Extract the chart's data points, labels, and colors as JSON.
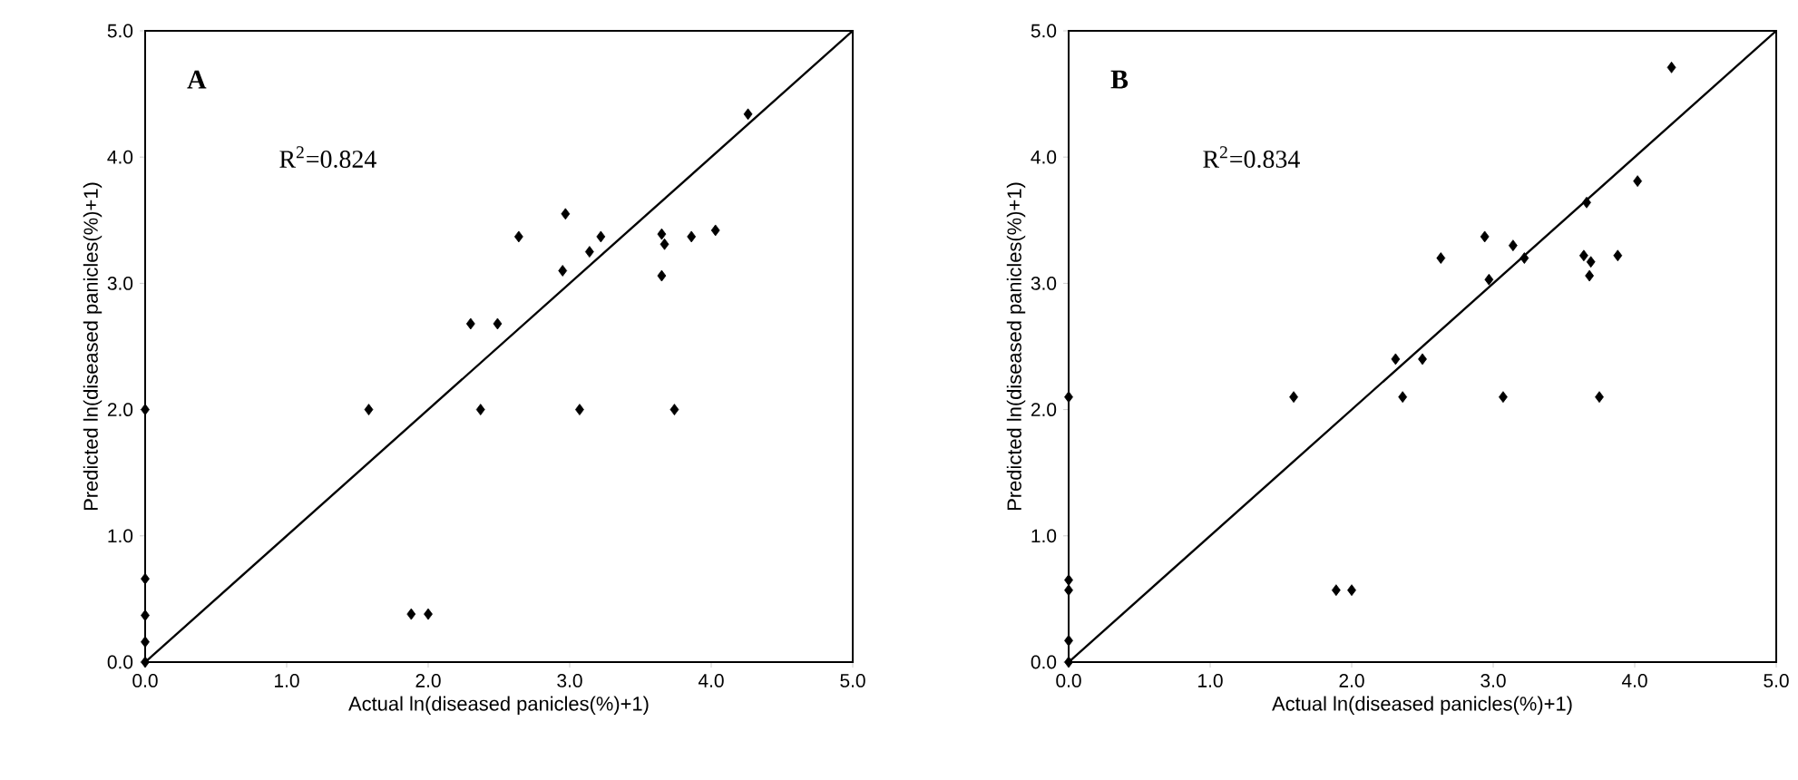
{
  "chart_data": [
    {
      "type": "scatter",
      "title": "A",
      "xlabel": "Actual ln(diseased panicles(%)+1)",
      "ylabel": "Predicted ln(diseased panicles(%)+1)",
      "annotations": [
        "R$^{2}$=0.824"
      ],
      "grid": false,
      "xlim": [
        0,
        5
      ],
      "ylim": [
        0,
        5
      ],
      "xticks": [
        {
          "value": 0,
          "label": "0.0"
        },
        {
          "value": 1,
          "label": "1.0"
        },
        {
          "value": 2,
          "label": "2.0"
        },
        {
          "value": 3,
          "label": "3.0"
        },
        {
          "value": 4,
          "label": "4.0"
        },
        {
          "value": 5,
          "label": "5.0"
        }
      ],
      "yticks": [
        {
          "value": 0,
          "label": "0.0"
        },
        {
          "value": 1,
          "label": "1.0"
        },
        {
          "value": 2,
          "label": "2.0"
        },
        {
          "value": 3,
          "label": "3.0"
        },
        {
          "value": 4,
          "label": "4.0"
        },
        {
          "value": 5,
          "label": "5.0"
        }
      ],
      "series": [
        {
          "marker": "diamond",
          "color": "#000000",
          "x": [
            0,
            0,
            0,
            0,
            0,
            1.58,
            1.88,
            2.0,
            2.3,
            2.49,
            2.37,
            2.64,
            2.97,
            2.95,
            3.14,
            3.22,
            3.07,
            3.65,
            3.67,
            3.65,
            3.74,
            3.86,
            4.03,
            4.26
          ],
          "values": [
            2.0,
            0.66,
            0.37,
            0.16,
            0,
            2.0,
            0.38,
            0.38,
            2.68,
            2.68,
            2.0,
            3.37,
            3.55,
            3.1,
            3.25,
            3.37,
            2.0,
            3.39,
            3.31,
            3.06,
            2.0,
            3.37,
            3.42,
            4.34
          ]
        },
        {
          "type": "line",
          "color": "#000000",
          "x": [
            0,
            5
          ],
          "values": [
            0,
            5
          ]
        }
      ]
    },
    {
      "type": "scatter",
      "title": "B",
      "xlabel": "Actual ln(diseased panicles(%)+1)",
      "ylabel": "Predicted ln(diseased panicles(%)+1)",
      "annotations": [
        "R$^{2}$=0.834"
      ],
      "grid": false,
      "xlim": [
        0,
        5
      ],
      "ylim": [
        0,
        5
      ],
      "xticks": [
        {
          "value": 0,
          "label": "0.0"
        },
        {
          "value": 1,
          "label": "1.0"
        },
        {
          "value": 2,
          "label": "2.0"
        },
        {
          "value": 3,
          "label": "3.0"
        },
        {
          "value": 4,
          "label": "4.0"
        },
        {
          "value": 5,
          "label": "5.0"
        }
      ],
      "yticks": [
        {
          "value": 0,
          "label": "0.0"
        },
        {
          "value": 1,
          "label": "1.0"
        },
        {
          "value": 2,
          "label": "2.0"
        },
        {
          "value": 3,
          "label": "3.0"
        },
        {
          "value": 4,
          "label": "4.0"
        },
        {
          "value": 5,
          "label": "5.0"
        }
      ],
      "series": [
        {
          "marker": "diamond",
          "color": "#000000",
          "x": [
            0,
            0,
            0,
            0,
            0,
            1.59,
            1.89,
            2.0,
            2.31,
            2.5,
            2.36,
            2.63,
            2.94,
            2.97,
            3.14,
            3.22,
            3.07,
            3.66,
            3.64,
            3.69,
            3.68,
            3.75,
            3.88,
            4.02,
            4.26
          ],
          "values": [
            2.1,
            0.65,
            0.57,
            0.17,
            0,
            2.1,
            0.57,
            0.57,
            2.4,
            2.4,
            2.1,
            3.2,
            3.37,
            3.03,
            3.3,
            3.2,
            2.1,
            3.64,
            3.22,
            3.17,
            3.06,
            2.1,
            3.22,
            3.81,
            4.71
          ]
        },
        {
          "type": "line",
          "color": "#000000",
          "x": [
            0,
            5
          ],
          "values": [
            0,
            5
          ]
        }
      ]
    }
  ]
}
